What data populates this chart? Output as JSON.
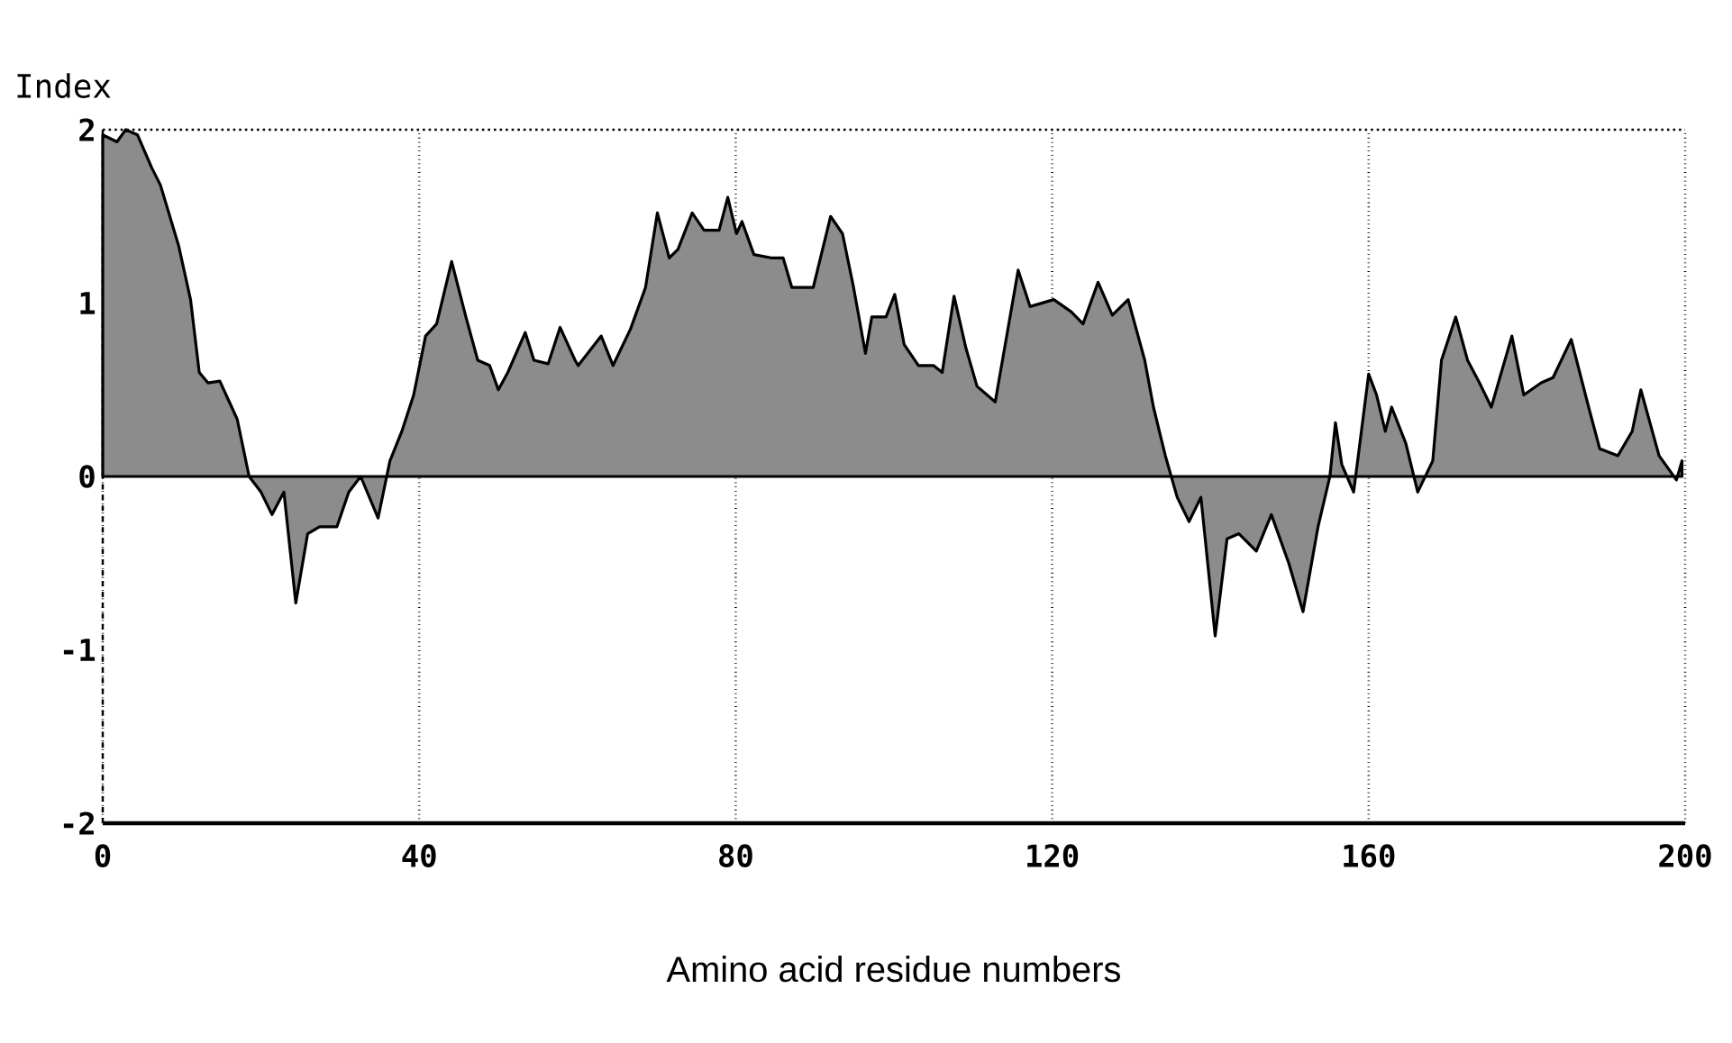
{
  "chart_data": {
    "type": "area",
    "xlabel": "Amino acid residue numbers",
    "ylabel": "Index",
    "xlim": [
      0,
      200
    ],
    "ylim": [
      -2,
      2
    ],
    "xticks": [
      0,
      40,
      80,
      120,
      160,
      200
    ],
    "yticks": [
      -2,
      -1,
      0,
      1,
      2
    ],
    "grid": "x",
    "color": "#000000",
    "x": [
      0,
      1.8,
      2.9,
      4.4,
      6.2,
      7.3,
      9.6,
      11.1,
      12.2,
      13.3,
      14.8,
      17.0,
      18.5,
      20.0,
      21.4,
      22.9,
      24.4,
      25.9,
      27.4,
      29.6,
      31.1,
      32.6,
      34.8,
      36.3,
      37.8,
      39.3,
      40.8,
      42.2,
      44.1,
      45.9,
      47.4,
      48.9,
      50.0,
      51.2,
      53.4,
      54.5,
      56.3,
      57.8,
      59.7,
      60.1,
      63.0,
      64.5,
      66.7,
      68.6,
      70.1,
      71.6,
      72.7,
      74.5,
      76.0,
      77.9,
      79.0,
      80.1,
      80.8,
      82.3,
      84.6,
      86.0,
      87.1,
      89.8,
      92.0,
      93.5,
      94.9,
      96.4,
      97.2,
      99.0,
      100.1,
      101.3,
      103.1,
      105.0,
      106.1,
      107.6,
      109.1,
      110.5,
      112.8,
      115.7,
      117.2,
      120.2,
      122.4,
      123.9,
      125.8,
      127.6,
      129.6,
      131.7,
      132.8,
      134.3,
      135.8,
      137.3,
      138.8,
      140.6,
      142.1,
      143.6,
      145.8,
      147.7,
      149.9,
      151.7,
      153.6,
      155.1,
      155.8,
      156.6,
      158.1,
      160.0,
      161.0,
      162.1,
      162.9,
      164.7,
      166.2,
      168.1,
      169.2,
      171.0,
      172.5,
      174.0,
      175.5,
      178.1,
      179.6,
      181.8,
      183.3,
      185.6,
      187.8,
      189.2,
      191.5,
      193.3,
      194.4,
      196.7,
      198.9,
      199.6
    ],
    "values": [
      1.97,
      1.93,
      2.0,
      1.97,
      1.78,
      1.68,
      1.33,
      1.02,
      0.6,
      0.54,
      0.55,
      0.33,
      0.0,
      -0.09,
      -0.22,
      -0.09,
      -0.73,
      -0.33,
      -0.29,
      -0.29,
      -0.09,
      0.0,
      -0.24,
      0.09,
      0.26,
      0.47,
      0.81,
      0.88,
      1.24,
      0.92,
      0.67,
      0.64,
      0.5,
      0.6,
      0.83,
      0.67,
      0.65,
      0.86,
      0.67,
      0.64,
      0.81,
      0.64,
      0.85,
      1.09,
      1.52,
      1.26,
      1.31,
      1.52,
      1.42,
      1.42,
      1.61,
      1.4,
      1.47,
      1.28,
      1.26,
      1.26,
      1.09,
      1.09,
      1.5,
      1.4,
      1.09,
      0.71,
      0.92,
      0.92,
      1.05,
      0.76,
      0.64,
      0.64,
      0.6,
      1.04,
      0.74,
      0.52,
      0.43,
      1.19,
      0.98,
      1.02,
      0.95,
      0.88,
      1.12,
      0.93,
      1.02,
      0.67,
      0.4,
      0.12,
      -0.12,
      -0.26,
      -0.12,
      -0.92,
      -0.36,
      -0.33,
      -0.43,
      -0.22,
      -0.5,
      -0.78,
      -0.29,
      0.0,
      0.31,
      0.07,
      -0.09,
      0.59,
      0.47,
      0.26,
      0.4,
      0.19,
      -0.09,
      0.09,
      0.67,
      0.92,
      0.67,
      0.54,
      0.4,
      0.81,
      0.47,
      0.54,
      0.57,
      0.79,
      0.4,
      0.16,
      0.12,
      0.26,
      0.5,
      0.12,
      -0.02,
      0.09
    ]
  }
}
